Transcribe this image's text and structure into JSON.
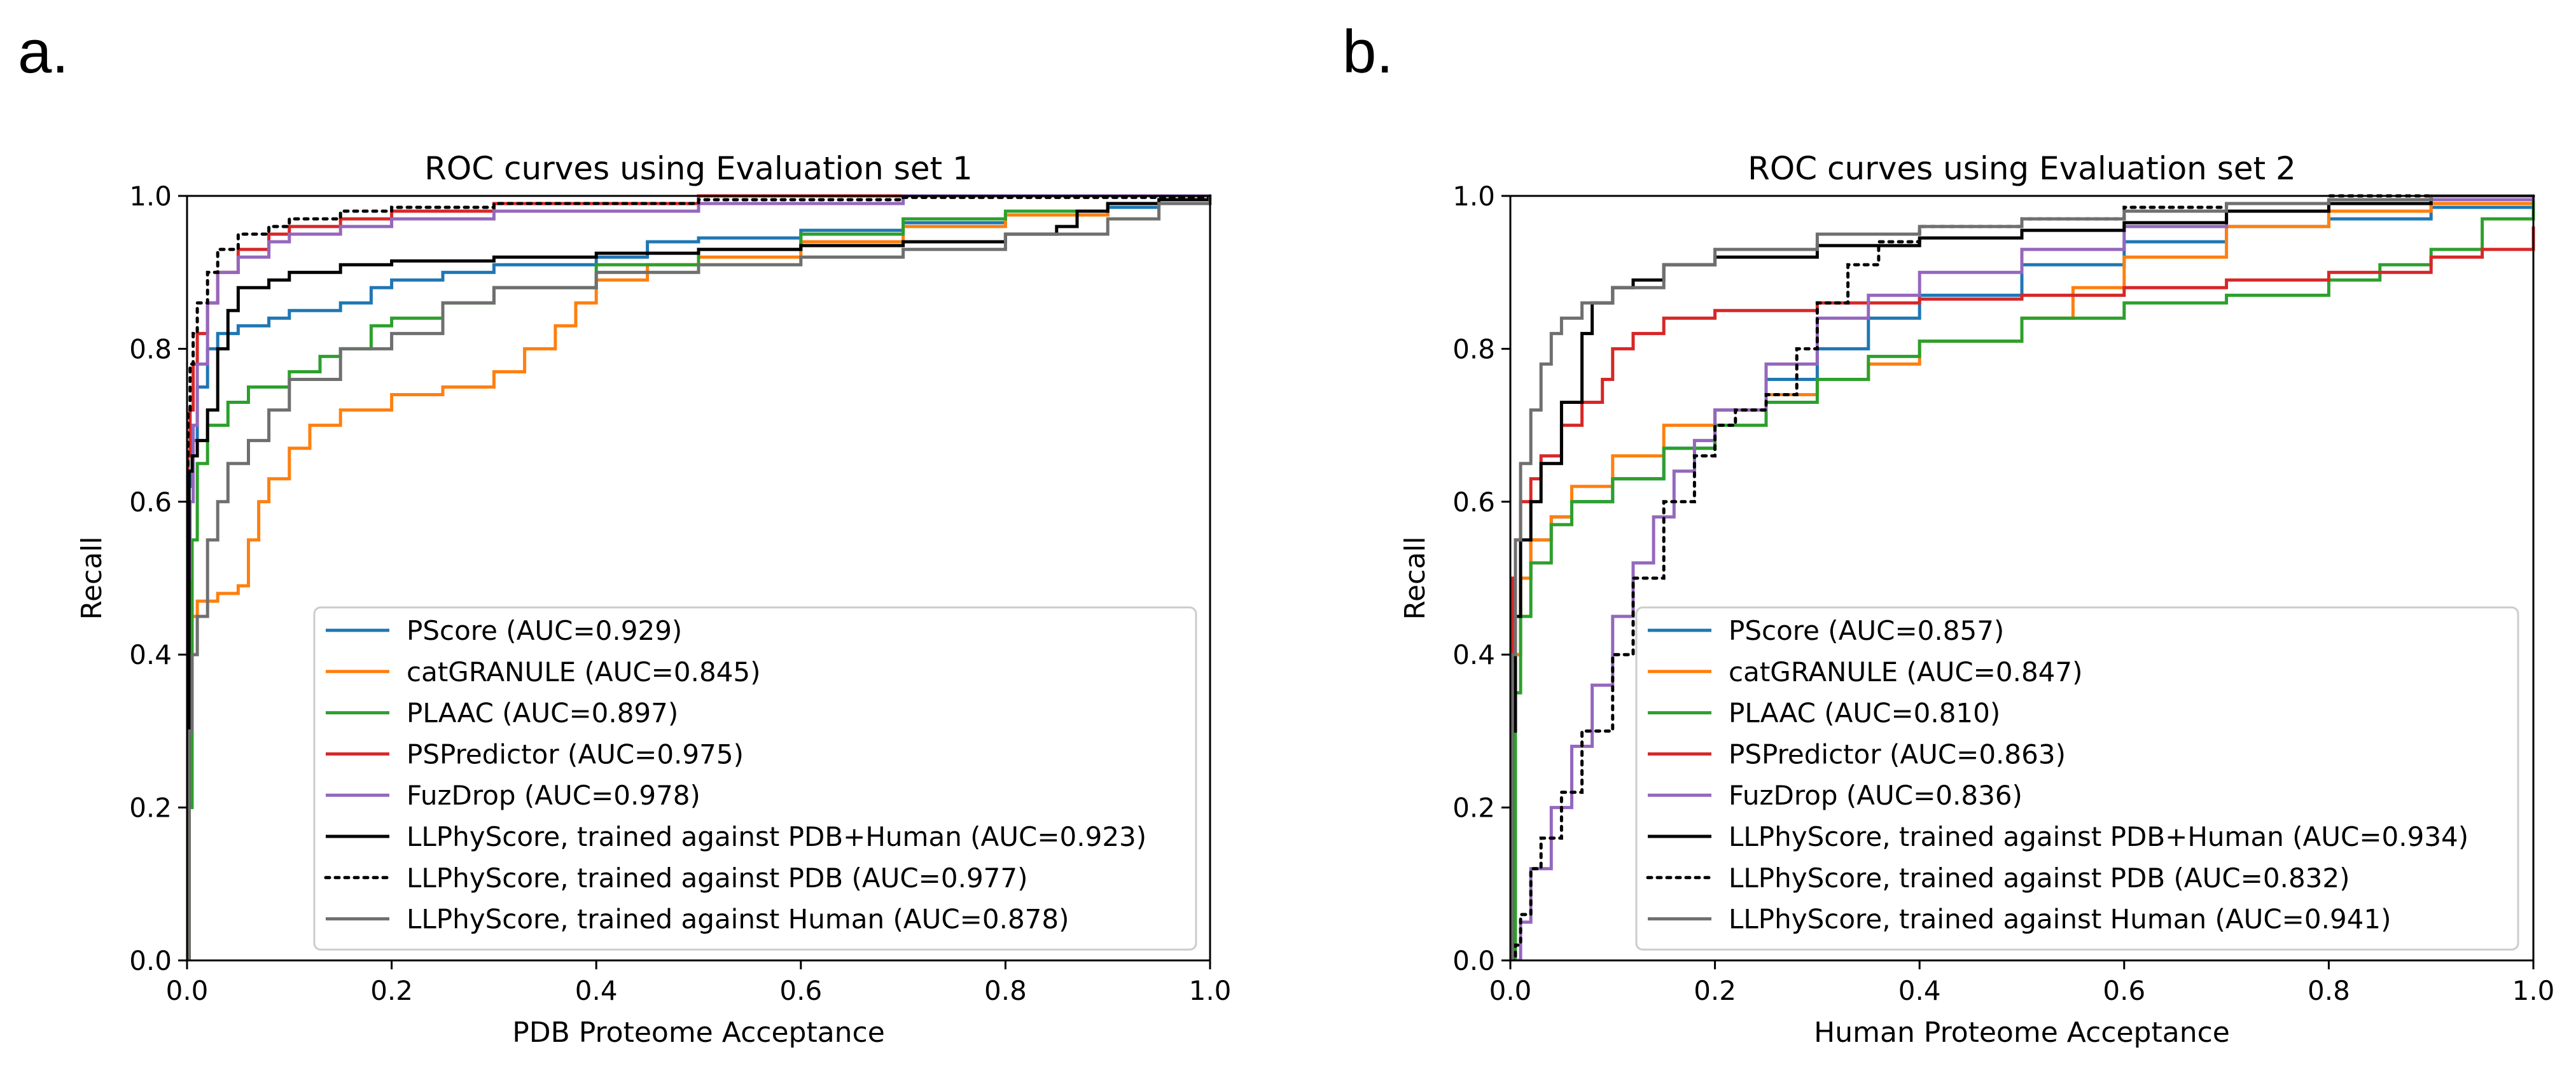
{
  "panel_labels": [
    "a.",
    "b."
  ],
  "colors": {
    "blue": "#1f77b4",
    "orange": "#ff7f0e",
    "green": "#2ca02c",
    "red": "#d62728",
    "purple": "#9467bd",
    "black": "#000000",
    "gray": "#6f6f6f"
  },
  "chart_data": [
    {
      "type": "line",
      "title": "ROC curves using Evaluation set 1",
      "xlabel": "PDB Proteome Acceptance",
      "ylabel": "Recall",
      "xlim": [
        0,
        1
      ],
      "ylim": [
        0,
        1
      ],
      "xticks": [
        0.0,
        0.2,
        0.4,
        0.6,
        0.8,
        1.0
      ],
      "yticks": [
        0.0,
        0.2,
        0.4,
        0.6,
        0.8,
        1.0
      ],
      "xtick_labels": [
        "0.0",
        "0.2",
        "0.4",
        "0.6",
        "0.8",
        "1.0"
      ],
      "ytick_labels": [
        "0.0",
        "0.2",
        "0.4",
        "0.6",
        "0.8",
        "1.0"
      ],
      "grid": false,
      "legend_position": "lower-right",
      "series": [
        {
          "name": "PScore (AUC=0.929)",
          "color": "blue",
          "style": "solid",
          "x": [
            0,
            0.002,
            0.005,
            0.01,
            0.02,
            0.03,
            0.05,
            0.08,
            0.1,
            0.15,
            0.18,
            0.2,
            0.25,
            0.3,
            0.4,
            0.45,
            0.5,
            0.6,
            0.7,
            0.8,
            0.9,
            0.95,
            1.0
          ],
          "y": [
            0,
            0.62,
            0.68,
            0.75,
            0.8,
            0.82,
            0.83,
            0.84,
            0.85,
            0.86,
            0.88,
            0.89,
            0.9,
            0.91,
            0.92,
            0.94,
            0.945,
            0.955,
            0.965,
            0.975,
            0.985,
            0.99,
            1.0
          ]
        },
        {
          "name": "catGRANULE (AUC=0.845)",
          "color": "orange",
          "style": "solid",
          "x": [
            0,
            0.002,
            0.01,
            0.03,
            0.05,
            0.06,
            0.07,
            0.08,
            0.1,
            0.12,
            0.15,
            0.2,
            0.25,
            0.3,
            0.33,
            0.36,
            0.38,
            0.4,
            0.45,
            0.5,
            0.6,
            0.7,
            0.8,
            0.9,
            1.0
          ],
          "y": [
            0,
            0.45,
            0.47,
            0.48,
            0.49,
            0.55,
            0.6,
            0.63,
            0.67,
            0.7,
            0.72,
            0.74,
            0.75,
            0.77,
            0.8,
            0.83,
            0.86,
            0.89,
            0.91,
            0.92,
            0.94,
            0.96,
            0.975,
            0.99,
            1.0
          ]
        },
        {
          "name": "PLAAC (AUC=0.897)",
          "color": "green",
          "style": "solid",
          "x": [
            0,
            0.002,
            0.005,
            0.01,
            0.02,
            0.04,
            0.06,
            0.1,
            0.13,
            0.15,
            0.18,
            0.2,
            0.25,
            0.3,
            0.4,
            0.5,
            0.6,
            0.7,
            0.8,
            0.9,
            1.0
          ],
          "y": [
            0,
            0.2,
            0.55,
            0.65,
            0.7,
            0.73,
            0.75,
            0.77,
            0.79,
            0.8,
            0.83,
            0.84,
            0.86,
            0.88,
            0.91,
            0.93,
            0.95,
            0.97,
            0.98,
            0.99,
            1.0
          ]
        },
        {
          "name": "PSPredictor (AUC=0.975)",
          "color": "red",
          "style": "solid",
          "x": [
            0,
            0.001,
            0.003,
            0.006,
            0.01,
            0.02,
            0.03,
            0.05,
            0.08,
            0.1,
            0.15,
            0.2,
            0.3,
            0.5,
            0.7,
            1.0
          ],
          "y": [
            0,
            0.66,
            0.72,
            0.78,
            0.82,
            0.86,
            0.9,
            0.93,
            0.95,
            0.96,
            0.97,
            0.98,
            0.99,
            1.0,
            1.0,
            1.0
          ]
        },
        {
          "name": "FuzDrop (AUC=0.978)",
          "color": "purple",
          "style": "solid",
          "x": [
            0,
            0.001,
            0.003,
            0.006,
            0.01,
            0.02,
            0.03,
            0.05,
            0.08,
            0.1,
            0.15,
            0.2,
            0.3,
            0.5,
            0.7,
            1.0
          ],
          "y": [
            0,
            0.5,
            0.6,
            0.7,
            0.78,
            0.86,
            0.9,
            0.92,
            0.94,
            0.95,
            0.96,
            0.97,
            0.98,
            0.99,
            1.0,
            1.0
          ]
        },
        {
          "name": "LLPhyScore, trained against PDB+Human (AUC=0.923)",
          "color": "black",
          "style": "solid",
          "x": [
            0,
            0.002,
            0.005,
            0.01,
            0.02,
            0.03,
            0.04,
            0.05,
            0.08,
            0.1,
            0.15,
            0.2,
            0.3,
            0.4,
            0.5,
            0.6,
            0.7,
            0.8,
            0.85,
            0.87,
            0.9,
            0.95,
            1.0
          ],
          "y": [
            0,
            0.64,
            0.66,
            0.68,
            0.72,
            0.8,
            0.85,
            0.88,
            0.89,
            0.9,
            0.91,
            0.915,
            0.92,
            0.925,
            0.93,
            0.935,
            0.94,
            0.95,
            0.96,
            0.98,
            0.99,
            0.995,
            1.0
          ]
        },
        {
          "name": "LLPhyScore, trained against PDB (AUC=0.977)",
          "color": "black",
          "style": "dotted",
          "x": [
            0,
            0.001,
            0.003,
            0.006,
            0.01,
            0.02,
            0.03,
            0.05,
            0.08,
            0.1,
            0.15,
            0.2,
            0.3,
            0.5,
            0.7,
            1.0
          ],
          "y": [
            0,
            0.72,
            0.78,
            0.82,
            0.86,
            0.9,
            0.93,
            0.95,
            0.96,
            0.97,
            0.98,
            0.985,
            0.99,
            0.995,
            0.998,
            1.0
          ]
        },
        {
          "name": "LLPhyScore, trained against Human (AUC=0.878)",
          "color": "gray",
          "style": "solid",
          "x": [
            0,
            0.002,
            0.005,
            0.01,
            0.02,
            0.03,
            0.04,
            0.06,
            0.08,
            0.1,
            0.15,
            0.2,
            0.25,
            0.3,
            0.4,
            0.5,
            0.6,
            0.7,
            0.8,
            0.9,
            0.95,
            1.0
          ],
          "y": [
            0,
            0.3,
            0.4,
            0.45,
            0.55,
            0.6,
            0.65,
            0.68,
            0.72,
            0.76,
            0.8,
            0.82,
            0.86,
            0.88,
            0.9,
            0.91,
            0.92,
            0.93,
            0.95,
            0.97,
            0.99,
            1.0
          ]
        }
      ]
    },
    {
      "type": "line",
      "title": "ROC curves using Evaluation set 2",
      "xlabel": "Human Proteome Acceptance",
      "ylabel": "Recall",
      "xlim": [
        0,
        1
      ],
      "ylim": [
        0,
        1
      ],
      "xticks": [
        0.0,
        0.2,
        0.4,
        0.6,
        0.8,
        1.0
      ],
      "yticks": [
        0.0,
        0.2,
        0.4,
        0.6,
        0.8,
        1.0
      ],
      "xtick_labels": [
        "0.0",
        "0.2",
        "0.4",
        "0.6",
        "0.8",
        "1.0"
      ],
      "ytick_labels": [
        "0.0",
        "0.2",
        "0.4",
        "0.6",
        "0.8",
        "1.0"
      ],
      "grid": false,
      "legend_position": "lower-right",
      "series": [
        {
          "name": "PScore (AUC=0.857)",
          "color": "blue",
          "style": "solid",
          "x": [
            0,
            0.005,
            0.01,
            0.02,
            0.04,
            0.06,
            0.1,
            0.15,
            0.2,
            0.25,
            0.3,
            0.35,
            0.4,
            0.5,
            0.6,
            0.7,
            0.8,
            0.9,
            1.0
          ],
          "y": [
            0,
            0.4,
            0.5,
            0.55,
            0.58,
            0.6,
            0.63,
            0.67,
            0.72,
            0.76,
            0.8,
            0.84,
            0.87,
            0.91,
            0.94,
            0.96,
            0.97,
            0.985,
            1.0
          ]
        },
        {
          "name": "catGRANULE (AUC=0.847)",
          "color": "orange",
          "style": "solid",
          "x": [
            0,
            0.003,
            0.01,
            0.02,
            0.04,
            0.06,
            0.1,
            0.15,
            0.2,
            0.25,
            0.3,
            0.35,
            0.4,
            0.5,
            0.55,
            0.6,
            0.7,
            0.8,
            0.9,
            1.0
          ],
          "y": [
            0,
            0.4,
            0.5,
            0.55,
            0.58,
            0.62,
            0.66,
            0.7,
            0.72,
            0.74,
            0.76,
            0.78,
            0.81,
            0.84,
            0.88,
            0.92,
            0.96,
            0.98,
            0.99,
            1.0
          ]
        },
        {
          "name": "PLAAC (AUC=0.810)",
          "color": "green",
          "style": "solid",
          "x": [
            0,
            0.005,
            0.01,
            0.02,
            0.04,
            0.06,
            0.1,
            0.15,
            0.2,
            0.25,
            0.3,
            0.35,
            0.4,
            0.5,
            0.6,
            0.7,
            0.8,
            0.85,
            0.9,
            0.95,
            1.0
          ],
          "y": [
            0,
            0.35,
            0.45,
            0.52,
            0.57,
            0.6,
            0.63,
            0.67,
            0.7,
            0.73,
            0.76,
            0.79,
            0.81,
            0.84,
            0.86,
            0.87,
            0.89,
            0.91,
            0.93,
            0.97,
            1.0
          ]
        },
        {
          "name": "PSPredictor (AUC=0.863)",
          "color": "red",
          "style": "solid",
          "x": [
            0,
            0.002,
            0.005,
            0.01,
            0.02,
            0.03,
            0.05,
            0.07,
            0.09,
            0.1,
            0.12,
            0.15,
            0.2,
            0.3,
            0.4,
            0.5,
            0.6,
            0.7,
            0.8,
            0.9,
            0.95,
            1.0
          ],
          "y": [
            0,
            0.5,
            0.55,
            0.6,
            0.63,
            0.66,
            0.7,
            0.73,
            0.76,
            0.8,
            0.82,
            0.84,
            0.85,
            0.86,
            0.865,
            0.87,
            0.88,
            0.89,
            0.9,
            0.92,
            0.93,
            0.96
          ]
        },
        {
          "name": "FuzDrop (AUC=0.836)",
          "color": "purple",
          "style": "solid",
          "x": [
            0,
            0.01,
            0.02,
            0.04,
            0.06,
            0.08,
            0.1,
            0.12,
            0.14,
            0.16,
            0.18,
            0.2,
            0.25,
            0.3,
            0.35,
            0.4,
            0.5,
            0.6,
            0.7,
            0.8,
            0.9,
            1.0
          ],
          "y": [
            0,
            0.05,
            0.12,
            0.2,
            0.28,
            0.36,
            0.45,
            0.52,
            0.58,
            0.64,
            0.68,
            0.72,
            0.78,
            0.84,
            0.87,
            0.9,
            0.93,
            0.96,
            0.98,
            0.99,
            0.995,
            1.0
          ]
        },
        {
          "name": "LLPhyScore, trained against PDB+Human (AUC=0.934)",
          "color": "black",
          "style": "solid",
          "x": [
            0,
            0.002,
            0.005,
            0.01,
            0.02,
            0.03,
            0.05,
            0.07,
            0.08,
            0.1,
            0.12,
            0.15,
            0.2,
            0.3,
            0.4,
            0.5,
            0.6,
            0.7,
            0.8,
            0.9,
            1.0
          ],
          "y": [
            0,
            0.3,
            0.45,
            0.55,
            0.6,
            0.65,
            0.73,
            0.82,
            0.86,
            0.88,
            0.89,
            0.91,
            0.92,
            0.935,
            0.945,
            0.955,
            0.965,
            0.98,
            0.99,
            1.0,
            1.0
          ]
        },
        {
          "name": "LLPhyScore, trained against PDB (AUC=0.832)",
          "color": "black",
          "style": "dotted",
          "x": [
            0,
            0.005,
            0.01,
            0.02,
            0.03,
            0.05,
            0.07,
            0.1,
            0.12,
            0.15,
            0.18,
            0.2,
            0.22,
            0.25,
            0.28,
            0.3,
            0.33,
            0.36,
            0.4,
            0.5,
            0.6,
            0.7,
            0.8,
            1.0
          ],
          "y": [
            0,
            0.02,
            0.06,
            0.12,
            0.16,
            0.22,
            0.3,
            0.4,
            0.5,
            0.6,
            0.66,
            0.7,
            0.72,
            0.74,
            0.8,
            0.86,
            0.91,
            0.94,
            0.96,
            0.97,
            0.985,
            0.99,
            1.0,
            1.0
          ]
        },
        {
          "name": "LLPhyScore, trained against Human (AUC=0.941)",
          "color": "gray",
          "style": "solid",
          "x": [
            0,
            0.002,
            0.005,
            0.01,
            0.02,
            0.03,
            0.04,
            0.05,
            0.07,
            0.1,
            0.15,
            0.2,
            0.3,
            0.4,
            0.5,
            0.6,
            0.7,
            0.8,
            0.9,
            1.0
          ],
          "y": [
            0,
            0.4,
            0.55,
            0.65,
            0.72,
            0.78,
            0.82,
            0.84,
            0.86,
            0.88,
            0.91,
            0.93,
            0.95,
            0.96,
            0.97,
            0.98,
            0.99,
            0.995,
            1.0,
            1.0
          ]
        }
      ]
    }
  ]
}
